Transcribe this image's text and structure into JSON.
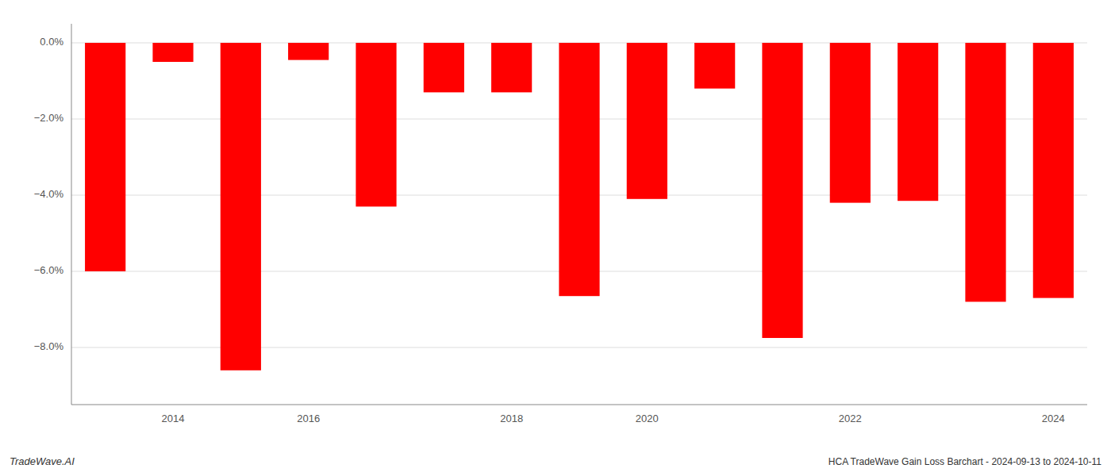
{
  "chart_data": {
    "type": "bar",
    "title": "HCA TradeWave Gain Loss Barchart - 2024-09-13 to 2024-10-11",
    "annotations": [
      "TradeWave.AI"
    ],
    "categories": [
      null,
      "2014",
      null,
      "2016",
      null,
      null,
      "2018",
      null,
      "2020",
      null,
      null,
      "2022",
      null,
      null,
      "2024"
    ],
    "values": [
      -6.0,
      -0.5,
      -8.6,
      -0.45,
      -4.3,
      -1.3,
      -1.3,
      -6.65,
      -4.1,
      -1.2,
      -7.75,
      -4.2,
      -4.15,
      -6.8,
      -6.7
    ],
    "color": "#ff0000",
    "ylim": [
      -9.5,
      0.5
    ],
    "yticks": [
      {
        "value": 0.0,
        "label": "0.0%"
      },
      {
        "value": -2.0,
        "label": "−2.0%"
      },
      {
        "value": -4.0,
        "label": "−4.0%"
      },
      {
        "value": -6.0,
        "label": "−6.0%"
      },
      {
        "value": -8.0,
        "label": "−8.0%"
      }
    ],
    "grid": true
  }
}
